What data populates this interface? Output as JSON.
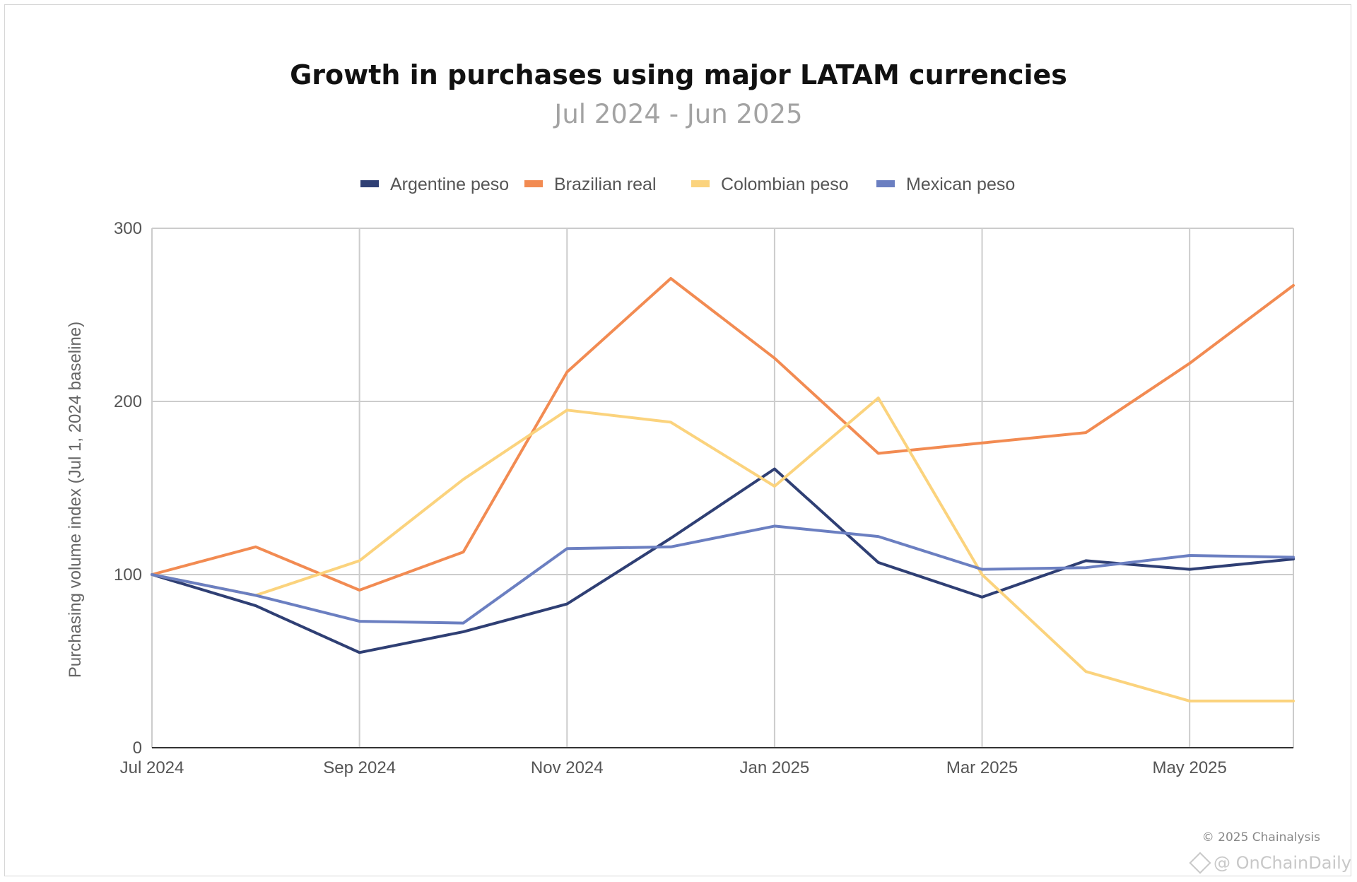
{
  "chart_data": {
    "type": "line",
    "title": "Growth in purchases using major LATAM currencies",
    "subtitle": "Jul 2024 - Jun 2025",
    "ylabel": "Purchasing volume index (Jul 1, 2024 baseline)",
    "xlabel": "",
    "ylim": [
      0,
      300
    ],
    "yticks": [
      0,
      100,
      200,
      300
    ],
    "x": [
      "Jul 2024",
      "Aug 2024",
      "Sep 2024",
      "Oct 2024",
      "Nov 2024",
      "Dec 2024",
      "Jan 2025",
      "Feb 2025",
      "Mar 2025",
      "Apr 2025",
      "May 2025",
      "Jun 2025"
    ],
    "xticks": [
      {
        "label": "Jul 2024",
        "index": 0
      },
      {
        "label": "Sep 2024",
        "index": 2
      },
      {
        "label": "Nov 2024",
        "index": 4
      },
      {
        "label": "Jan 2025",
        "index": 6
      },
      {
        "label": "Mar 2025",
        "index": 8
      },
      {
        "label": "May 2025",
        "index": 10
      }
    ],
    "legend_position": "top",
    "grid": true,
    "series": [
      {
        "name": "Argentine peso",
        "color": "#2f3f74",
        "values": [
          100,
          82,
          55,
          67,
          83,
          121,
          161,
          107,
          87,
          108,
          103,
          109
        ]
      },
      {
        "name": "Brazilian real",
        "color": "#f28b52",
        "values": [
          100,
          116,
          91,
          113,
          217,
          271,
          225,
          170,
          176,
          182,
          222,
          267
        ]
      },
      {
        "name": "Colombian peso",
        "color": "#fbd37d",
        "values": [
          100,
          88,
          108,
          155,
          195,
          188,
          151,
          202,
          100,
          44,
          27,
          27
        ]
      },
      {
        "name": "Mexican peso",
        "color": "#6b7fc1",
        "values": [
          100,
          88,
          73,
          72,
          115,
          116,
          128,
          122,
          103,
          104,
          111,
          110
        ]
      }
    ]
  },
  "footer": {
    "copyright": "© 2025 Chainalysis",
    "watermark": "@ OnChainDaily"
  }
}
